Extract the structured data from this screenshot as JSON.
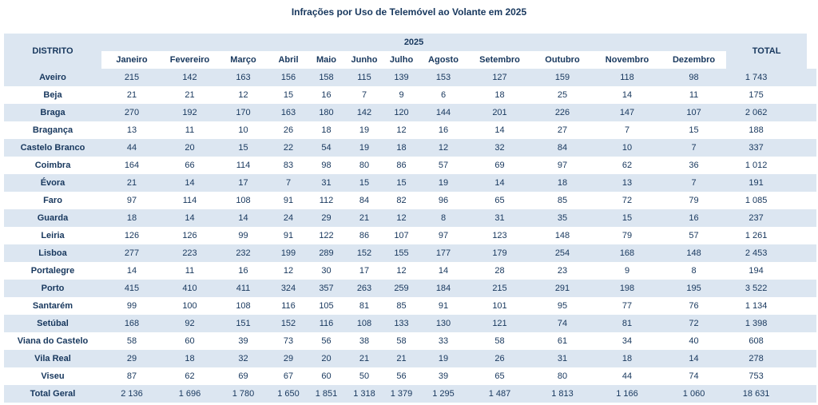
{
  "title": "Infrações por Uso de Telemóvel ao Volante em 2025",
  "header": {
    "district": "DISTRITO",
    "year": "2025",
    "total": "TOTAL"
  },
  "total_row_label": "Total Geral",
  "colors": {
    "text_navy": "#17375D",
    "stripe_blue": "#DCE6F1",
    "background": "#FFFFFF"
  },
  "chart_data": {
    "type": "table",
    "title": "Infrações por Uso de Telemóvel ao Volante em 2025",
    "categories": [
      "Janeiro",
      "Fevereiro",
      "Março",
      "Abril",
      "Maio",
      "Junho",
      "Julho",
      "Agosto",
      "Setembro",
      "Outubro",
      "Novembro",
      "Dezembro"
    ],
    "series": [
      {
        "name": "Aveiro",
        "values": [
          215,
          142,
          163,
          156,
          158,
          115,
          139,
          153,
          127,
          159,
          118,
          98
        ],
        "total": 1743
      },
      {
        "name": "Beja",
        "values": [
          21,
          21,
          12,
          15,
          16,
          7,
          9,
          6,
          18,
          25,
          14,
          11
        ],
        "total": 175
      },
      {
        "name": "Braga",
        "values": [
          270,
          192,
          170,
          163,
          180,
          142,
          120,
          144,
          201,
          226,
          147,
          107
        ],
        "total": 2062
      },
      {
        "name": "Bragança",
        "values": [
          13,
          11,
          10,
          26,
          18,
          19,
          12,
          16,
          14,
          27,
          7,
          15
        ],
        "total": 188
      },
      {
        "name": "Castelo Branco",
        "values": [
          44,
          20,
          15,
          22,
          54,
          19,
          18,
          12,
          32,
          84,
          10,
          7
        ],
        "total": 337
      },
      {
        "name": "Coimbra",
        "values": [
          164,
          66,
          114,
          83,
          98,
          80,
          86,
          57,
          69,
          97,
          62,
          36
        ],
        "total": 1012
      },
      {
        "name": "Évora",
        "values": [
          21,
          14,
          17,
          7,
          31,
          15,
          15,
          19,
          14,
          18,
          13,
          7
        ],
        "total": 191
      },
      {
        "name": "Faro",
        "values": [
          97,
          114,
          108,
          91,
          112,
          84,
          82,
          96,
          65,
          85,
          72,
          79
        ],
        "total": 1085
      },
      {
        "name": "Guarda",
        "values": [
          18,
          14,
          14,
          24,
          29,
          21,
          12,
          8,
          31,
          35,
          15,
          16
        ],
        "total": 237
      },
      {
        "name": "Leiria",
        "values": [
          126,
          126,
          99,
          91,
          122,
          86,
          107,
          97,
          123,
          148,
          79,
          57
        ],
        "total": 1261
      },
      {
        "name": "Lisboa",
        "values": [
          277,
          223,
          232,
          199,
          289,
          152,
          155,
          177,
          179,
          254,
          168,
          148
        ],
        "total": 2453
      },
      {
        "name": "Portalegre",
        "values": [
          14,
          11,
          16,
          12,
          30,
          17,
          12,
          14,
          28,
          23,
          9,
          8
        ],
        "total": 194
      },
      {
        "name": "Porto",
        "values": [
          415,
          410,
          411,
          324,
          357,
          263,
          259,
          184,
          215,
          291,
          198,
          195
        ],
        "total": 3522
      },
      {
        "name": "Santarém",
        "values": [
          99,
          100,
          108,
          116,
          105,
          81,
          85,
          91,
          101,
          95,
          77,
          76
        ],
        "total": 1134
      },
      {
        "name": "Setúbal",
        "values": [
          168,
          92,
          151,
          152,
          116,
          108,
          133,
          130,
          121,
          74,
          81,
          72
        ],
        "total": 1398
      },
      {
        "name": "Viana do Castelo",
        "values": [
          58,
          60,
          39,
          73,
          56,
          38,
          58,
          33,
          58,
          61,
          34,
          40
        ],
        "total": 608
      },
      {
        "name": "Vila Real",
        "values": [
          29,
          18,
          32,
          29,
          20,
          21,
          21,
          19,
          26,
          31,
          18,
          14
        ],
        "total": 278
      },
      {
        "name": "Viseu",
        "values": [
          87,
          62,
          69,
          67,
          60,
          50,
          56,
          39,
          65,
          80,
          44,
          74
        ],
        "total": 753
      }
    ],
    "column_totals": [
      2136,
      1696,
      1780,
      1650,
      1851,
      1318,
      1379,
      1295,
      1487,
      1813,
      1166,
      1060
    ],
    "grand_total": 18631
  }
}
